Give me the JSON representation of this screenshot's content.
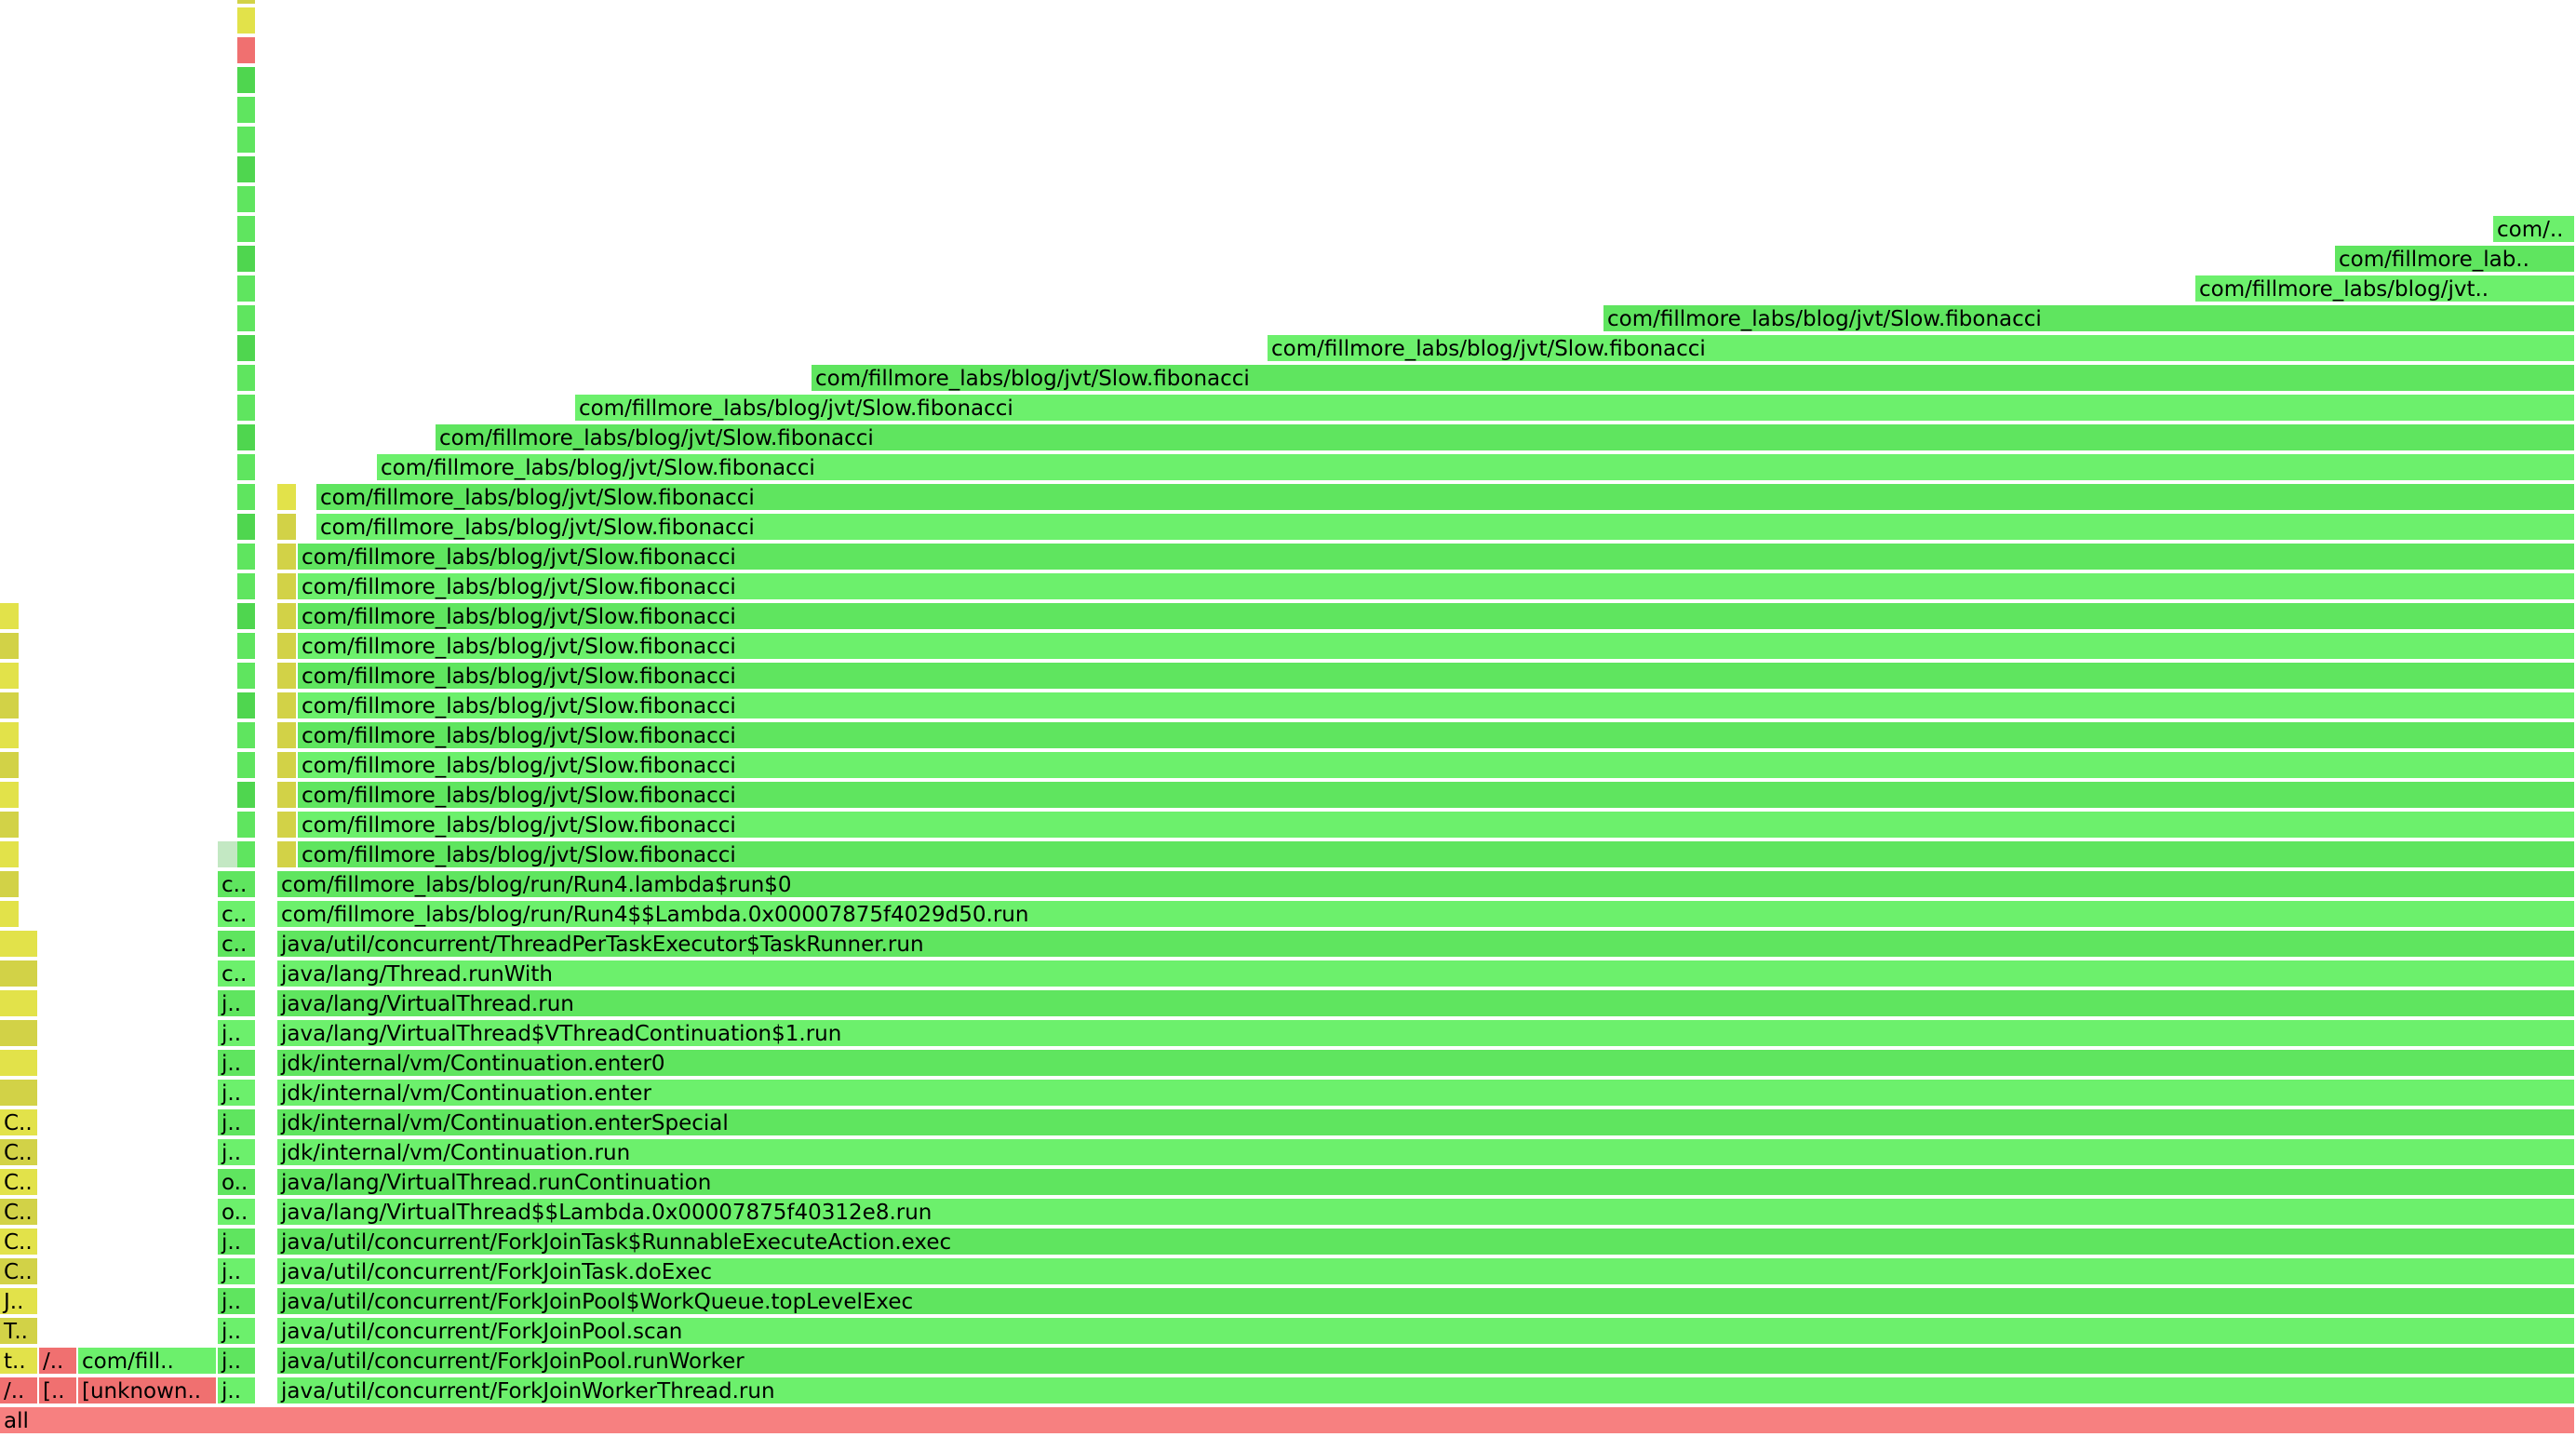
{
  "flamegraph": {
    "root_label": "all",
    "palette": {
      "green": "#6cf06c",
      "green_alt": "#5fe55f",
      "green_dark": "#4fd64f",
      "green_pale": "#c3e8c3",
      "yellow": "#e2e24a",
      "olive": "#d2d247",
      "red": "#f07070",
      "red_root": "#f78080"
    },
    "main_stack": [
      "java/util/concurrent/ForkJoinWorkerThread.run",
      "java/util/concurrent/ForkJoinPool.runWorker",
      "java/util/concurrent/ForkJoinPool.scan",
      "java/util/concurrent/ForkJoinPool$WorkQueue.topLevelExec",
      "java/util/concurrent/ForkJoinTask.doExec",
      "java/util/concurrent/ForkJoinTask$RunnableExecuteAction.exec",
      "java/lang/VirtualThread$$Lambda.0x00007875f40312e8.run",
      "java/lang/VirtualThread.runContinuation",
      "jdk/internal/vm/Continuation.run",
      "jdk/internal/vm/Continuation.enterSpecial",
      "jdk/internal/vm/Continuation.enter",
      "jdk/internal/vm/Continuation.enter0",
      "java/lang/VirtualThread$VThreadContinuation$1.run",
      "java/lang/VirtualThread.run",
      "java/lang/Thread.runWith",
      "java/util/concurrent/ThreadPerTaskExecutor$TaskRunner.run",
      "com/fillmore_labs/blog/run/Run4$$Lambda.0x00007875f4029d50.run",
      "com/fillmore_labs/blog/run/Run4.lambda$run$0"
    ],
    "fib_label": "com/fillmore_labs/blog/jvt/Slow.fibonacci",
    "fib_truncated": [
      "com/fillmore_labs/blog/jvt..",
      "com/fillmore_lab..",
      "com/.."
    ],
    "side_labels": {
      "col_a": [
        "/..",
        "t..",
        "T..",
        "J..",
        "C..",
        "C..",
        "C..",
        "C..",
        "C..",
        "C.."
      ],
      "col_b": [
        "[..",
        "/.."
      ],
      "col_c": [
        "[unknown..",
        "com/fill.."
      ],
      "col_d": [
        "j..",
        "j..",
        "j..",
        "j..",
        "j..",
        "j..",
        "o..",
        "o..",
        "j..",
        "j..",
        "j..",
        "j..",
        "j..",
        "j..",
        "c..",
        "c..",
        "c..",
        "c.."
      ]
    }
  }
}
